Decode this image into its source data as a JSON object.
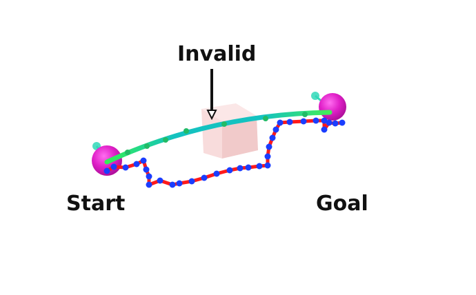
{
  "labels": {
    "invalid": "Invalid",
    "start": "Start",
    "goal": "Goal"
  },
  "colors": {
    "background": "#ffffff",
    "text": "#111111",
    "obstacle_front": "#f8dcdc",
    "obstacle_top": "#fbe7e7",
    "obstacle_side": "#f1caca",
    "endpoint_sphere": "#e020c8",
    "endpoint_highlight": "#ff6ef0",
    "axis_marker": "#30d8b8",
    "red_path": "#ff1a1a",
    "blue_waypoint": "#1a3dff",
    "smooth_path_start": "#33ee55",
    "smooth_path_mid": "#14c2c0",
    "smooth_path_end": "#44ee55",
    "smooth_waypoint": "#22bb66"
  },
  "icons": {
    "arrow": "down-arrow-icon",
    "start_marker": "start-sphere-icon",
    "goal_marker": "goal-sphere-icon"
  }
}
